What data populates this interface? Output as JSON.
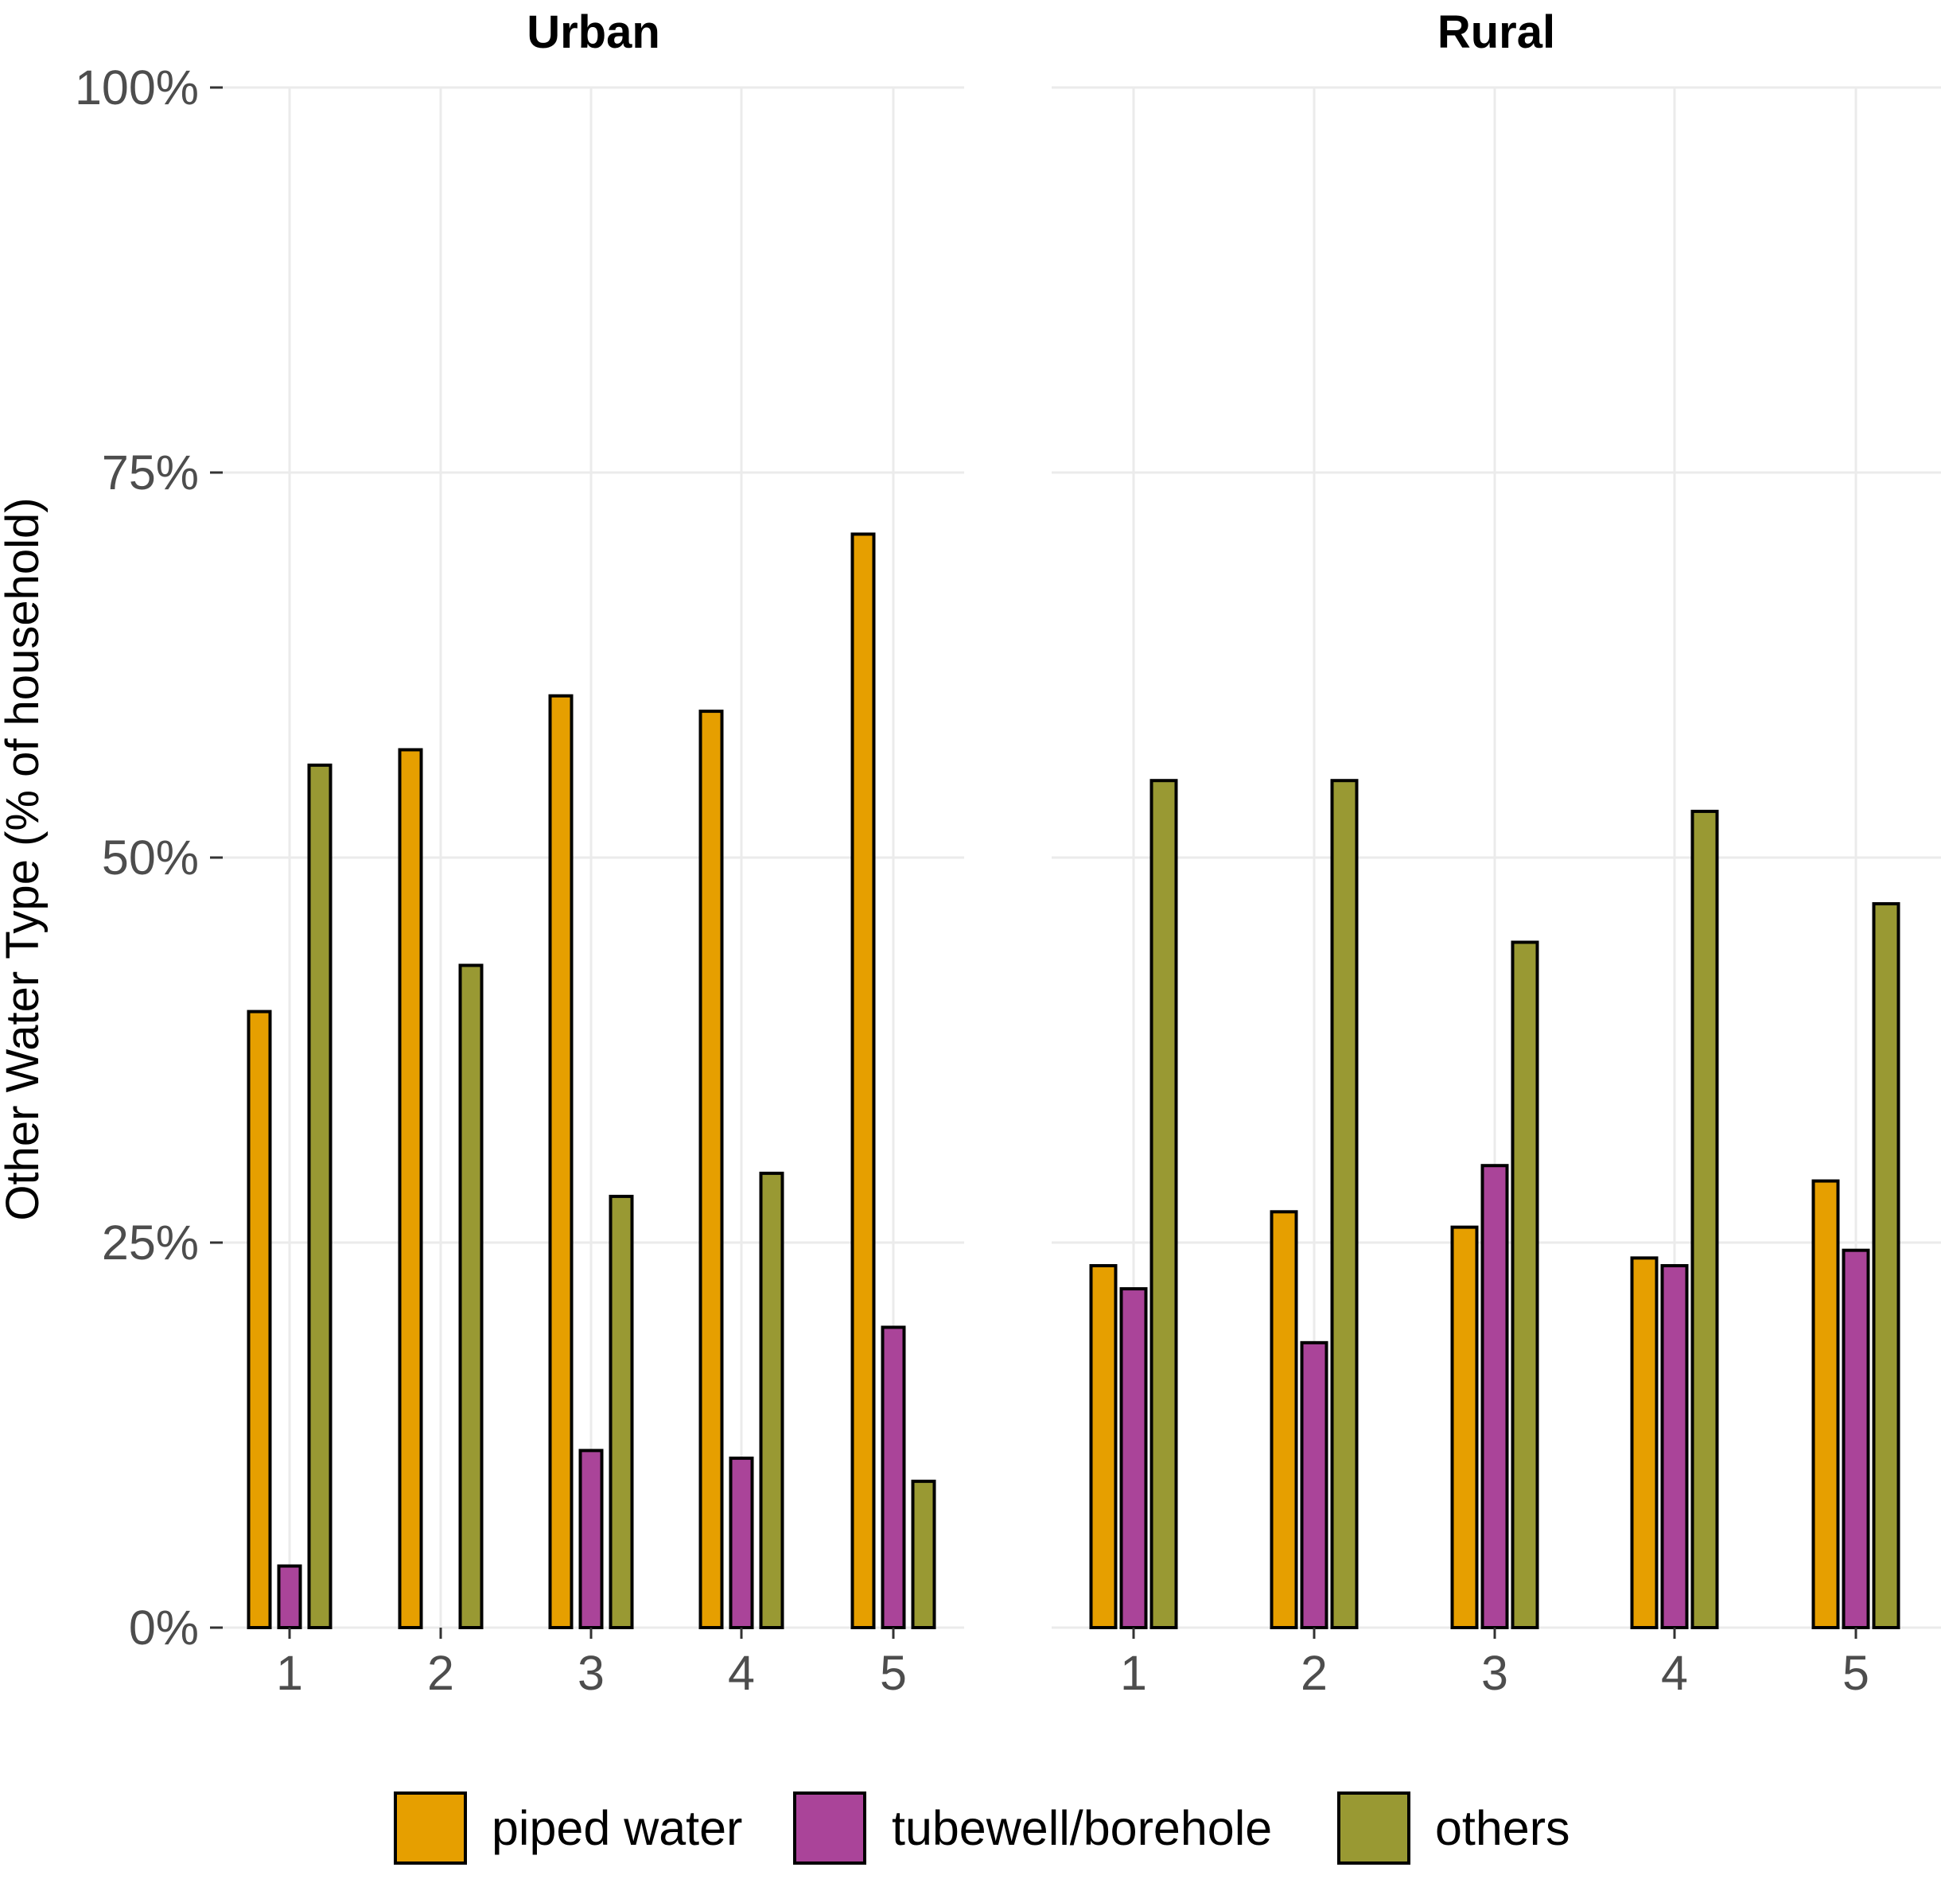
{
  "chart_data": {
    "type": "bar",
    "ylabel": "Other Water Type (% of household)",
    "xlabel": "",
    "ylim": [
      0,
      100
    ],
    "y_ticks": [
      0,
      25,
      50,
      75,
      100
    ],
    "y_tick_labels": [
      "0%",
      "25%",
      "50%",
      "75%",
      "100%"
    ],
    "categories": [
      "1",
      "2",
      "3",
      "4",
      "5"
    ],
    "grid": true,
    "legend_position": "bottom",
    "series_info": [
      {
        "name": "piped water",
        "color": "#E69F00"
      },
      {
        "name": "tubewell/borehole",
        "color": "#AA4499"
      },
      {
        "name": "others",
        "color": "#999933"
      }
    ],
    "panels": [
      {
        "title": "Urban",
        "series": [
          {
            "name": "piped water",
            "values": [
              40.0,
              57.0,
              60.5,
              59.5,
              71.0
            ]
          },
          {
            "name": "tubewell/borehole",
            "values": [
              4.0,
              null,
              11.5,
              11.0,
              19.5
            ]
          },
          {
            "name": "others",
            "values": [
              56.0,
              43.0,
              28.0,
              29.5,
              9.5
            ]
          }
        ]
      },
      {
        "title": "Rural",
        "series": [
          {
            "name": "piped water",
            "values": [
              23.5,
              27.0,
              26.0,
              24.0,
              29.0
            ]
          },
          {
            "name": "tubewell/borehole",
            "values": [
              22.0,
              18.5,
              30.0,
              23.5,
              24.5
            ]
          },
          {
            "name": "others",
            "values": [
              55.0,
              55.0,
              44.5,
              53.0,
              47.0
            ]
          }
        ]
      }
    ]
  }
}
